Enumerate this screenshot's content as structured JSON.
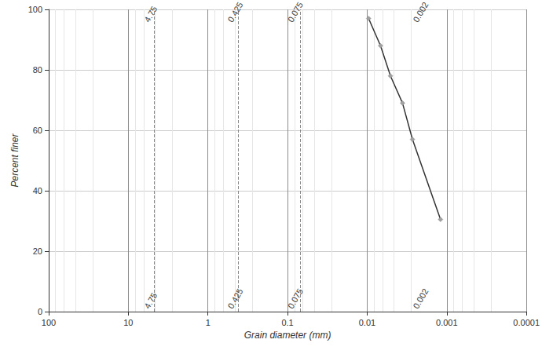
{
  "chart_data": {
    "type": "line",
    "x_label": "Grain diameter (mm)",
    "y_label": "Percent finer",
    "x": [
      0.0096,
      0.0068,
      0.0051,
      0.0036,
      0.0027,
      0.0012
    ],
    "values": [
      97,
      88,
      78,
      69,
      57,
      30.5
    ],
    "color": "#333333",
    "marker": "diamond",
    "log": "x",
    "xlim": [
      100,
      0.0001
    ],
    "xticks": [
      100,
      10,
      1,
      0.1,
      0.01,
      0.001,
      0.0001
    ],
    "ylim": [
      0,
      100
    ],
    "yticks": [
      0,
      20,
      40,
      60,
      80,
      100
    ],
    "grid": true,
    "annotations": [
      {
        "x": 4.75,
        "label": "4.75"
      },
      {
        "x": 0.425,
        "label": "0.425"
      },
      {
        "x": 0.075,
        "label": "0.075"
      },
      {
        "x": 0.002,
        "label": "0.002"
      }
    ]
  }
}
